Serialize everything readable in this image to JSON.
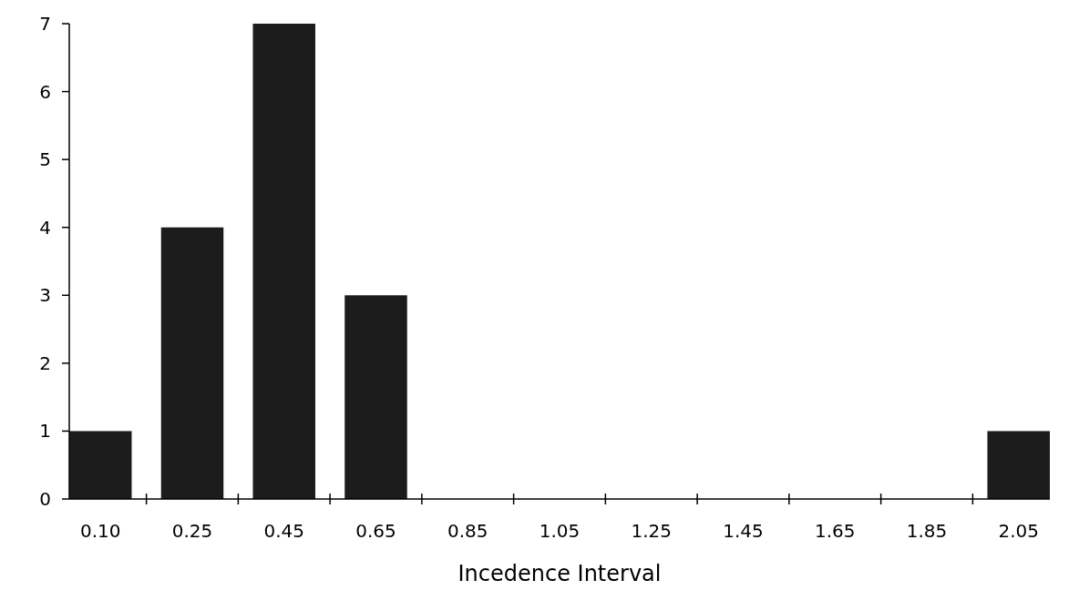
{
  "chart_data": {
    "type": "bar",
    "xlabel": "Incedence Interval",
    "categories": [
      "0.10",
      "0.25",
      "0.45",
      "0.65",
      "0.85",
      "1.05",
      "1.25",
      "1.45",
      "1.65",
      "1.85",
      "2.05"
    ],
    "values": [
      1,
      4,
      7,
      3,
      0,
      0,
      0,
      0,
      0,
      0,
      1
    ],
    "color": "#1c1c1c",
    "ylim": [
      0,
      7
    ],
    "yticks": [
      0,
      1,
      2,
      3,
      4,
      5,
      6,
      7
    ],
    "grid": false
  }
}
